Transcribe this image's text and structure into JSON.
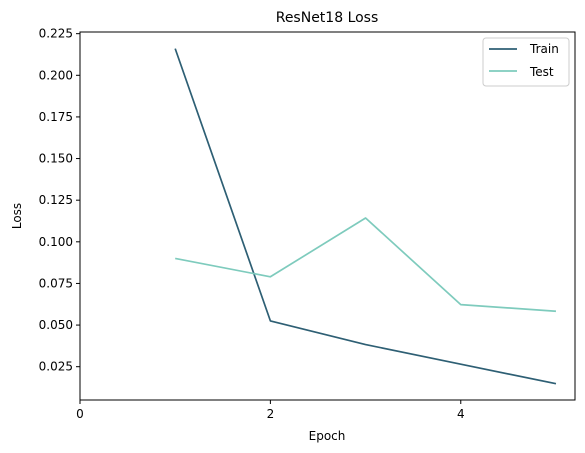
{
  "chart_data": {
    "type": "line",
    "title": "ResNet18 Loss",
    "xlabel": "Epoch",
    "ylabel": "Loss",
    "xlim": [
      0,
      5.2
    ],
    "ylim": [
      0.005,
      0.226
    ],
    "xticks": [
      0,
      2,
      4
    ],
    "yticks": [
      0.025,
      0.05,
      0.075,
      0.1,
      0.125,
      0.15,
      0.175,
      0.2,
      0.225
    ],
    "ytick_labels": [
      "0.025",
      "0.050",
      "0.075",
      "0.100",
      "0.125",
      "0.150",
      "0.175",
      "0.200",
      "0.225"
    ],
    "grid": false,
    "legend_position": "top-right",
    "series": [
      {
        "name": "Train",
        "color": "#2e5f74",
        "x": [
          1,
          2,
          3,
          4,
          5
        ],
        "y": [
          0.216,
          0.0525,
          0.0383,
          0.0265,
          0.0148
        ]
      },
      {
        "name": "Test",
        "color": "#7ecbbd",
        "x": [
          1,
          2,
          3,
          4,
          5
        ],
        "y": [
          0.09,
          0.079,
          0.1143,
          0.0623,
          0.0583
        ]
      }
    ]
  }
}
